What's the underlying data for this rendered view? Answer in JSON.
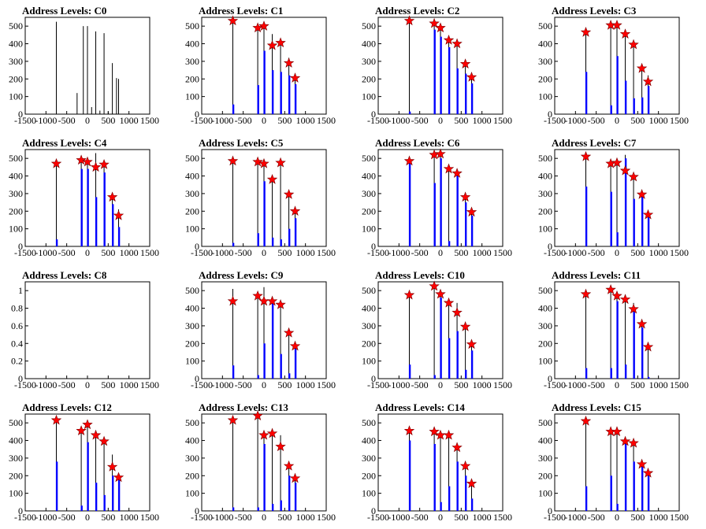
{
  "figure": {
    "colors": {
      "stem": "#000000",
      "bar": "#0000ff",
      "marker": "#ff0000",
      "marker_edge": "#7a0000",
      "axis": "#000000"
    }
  },
  "chart_data": [
    {
      "type": "bar",
      "title": "Address Levels: C0",
      "xlim": [
        -1500,
        1500
      ],
      "ylim": [
        0,
        550
      ],
      "xticks": [
        -1500,
        -1000,
        -500,
        0,
        500,
        1000,
        1500
      ],
      "yticks": [
        0,
        100,
        200,
        300,
        400,
        500
      ],
      "x": [
        -750,
        -250,
        -100,
        0,
        100,
        200,
        300,
        400,
        500,
        600,
        700,
        750
      ],
      "stems": [
        525,
        120,
        500,
        500,
        40,
        470,
        20,
        460,
        15,
        290,
        205,
        200
      ],
      "bars": [],
      "markers": []
    },
    {
      "type": "bar",
      "title": "Address Levels: C1",
      "xlim": [
        -1500,
        1500
      ],
      "ylim": [
        0,
        550
      ],
      "xticks": [
        -1500,
        -1000,
        -500,
        0,
        500,
        1000,
        1500
      ],
      "yticks": [
        0,
        100,
        200,
        300,
        400,
        500
      ],
      "x": [
        -750,
        -150,
        0,
        200,
        400,
        600,
        750
      ],
      "stems": [
        535,
        495,
        490,
        455,
        420,
        320,
        215
      ],
      "bars": [
        55,
        165,
        360,
        250,
        240,
        220,
        170
      ],
      "markers": [
        530,
        490,
        500,
        390,
        405,
        290,
        205
      ]
    },
    {
      "type": "bar",
      "title": "Address Levels: C2",
      "xlim": [
        -1500,
        1500
      ],
      "ylim": [
        0,
        550
      ],
      "xticks": [
        -1500,
        -1000,
        -500,
        0,
        500,
        1000,
        1500
      ],
      "yticks": [
        0,
        100,
        200,
        300,
        400,
        500
      ],
      "x": [
        -750,
        -150,
        0,
        200,
        400,
        600,
        750
      ],
      "stems": [
        540,
        510,
        480,
        420,
        390,
        285,
        210
      ],
      "bars": [
        15,
        480,
        440,
        380,
        260,
        230,
        175
      ],
      "markers": [
        530,
        515,
        490,
        420,
        400,
        285,
        210
      ]
    },
    {
      "type": "bar",
      "title": "Address Levels: C3",
      "xlim": [
        -1500,
        1500
      ],
      "ylim": [
        0,
        550
      ],
      "xticks": [
        -1500,
        -1000,
        -500,
        0,
        500,
        1000,
        1500
      ],
      "yticks": [
        0,
        100,
        200,
        300,
        400,
        500
      ],
      "x": [
        -750,
        -150,
        0,
        200,
        400,
        600,
        750
      ],
      "stems": [
        480,
        505,
        500,
        450,
        390,
        270,
        220
      ],
      "bars": [
        240,
        50,
        330,
        190,
        90,
        95,
        160
      ],
      "markers": [
        465,
        505,
        505,
        455,
        395,
        260,
        185
      ]
    },
    {
      "type": "bar",
      "title": "Address Levels: C4",
      "xlim": [
        -1500,
        1500
      ],
      "ylim": [
        0,
        550
      ],
      "xticks": [
        -1500,
        -1000,
        -500,
        0,
        500,
        1000,
        1500
      ],
      "yticks": [
        0,
        100,
        200,
        300,
        400,
        500
      ],
      "x": [
        -750,
        -150,
        0,
        200,
        400,
        600,
        750
      ],
      "stems": [
        480,
        500,
        490,
        530,
        470,
        290,
        210
      ],
      "bars": [
        40,
        440,
        440,
        280,
        420,
        240,
        110
      ],
      "markers": [
        470,
        490,
        480,
        450,
        465,
        280,
        175
      ]
    },
    {
      "type": "bar",
      "title": "Address Levels: C5",
      "xlim": [
        -1500,
        1500
      ],
      "ylim": [
        0,
        550
      ],
      "xticks": [
        -1500,
        -1000,
        -500,
        0,
        500,
        1000,
        1500
      ],
      "yticks": [
        0,
        100,
        200,
        300,
        400,
        500
      ],
      "x": [
        -750,
        -150,
        0,
        200,
        400,
        600,
        750
      ],
      "stems": [
        490,
        490,
        480,
        400,
        490,
        310,
        210
      ],
      "bars": [
        20,
        75,
        370,
        50,
        40,
        100,
        160
      ],
      "markers": [
        485,
        480,
        470,
        380,
        475,
        295,
        200
      ]
    },
    {
      "type": "bar",
      "title": "Address Levels: C6",
      "xlim": [
        -1500,
        1500
      ],
      "ylim": [
        0,
        550
      ],
      "xticks": [
        -1500,
        -1000,
        -500,
        0,
        500,
        1000,
        1500
      ],
      "yticks": [
        0,
        100,
        200,
        300,
        400,
        500
      ],
      "x": [
        -750,
        -150,
        0,
        200,
        400,
        600,
        750
      ],
      "stems": [
        490,
        525,
        530,
        450,
        420,
        290,
        205
      ],
      "bars": [
        480,
        360,
        500,
        30,
        400,
        250,
        175
      ],
      "markers": [
        485,
        520,
        525,
        440,
        415,
        280,
        195
      ]
    },
    {
      "type": "bar",
      "title": "Address Levels: C7",
      "xlim": [
        -1500,
        1500
      ],
      "ylim": [
        0,
        550
      ],
      "xticks": [
        -1500,
        -1000,
        -500,
        0,
        500,
        1000,
        1500
      ],
      "yticks": [
        0,
        100,
        200,
        300,
        400,
        500
      ],
      "x": [
        -750,
        -150,
        0,
        200,
        400,
        600,
        750
      ],
      "stems": [
        520,
        480,
        490,
        520,
        410,
        300,
        190
      ],
      "bars": [
        340,
        310,
        80,
        500,
        270,
        280,
        170
      ],
      "markers": [
        510,
        470,
        475,
        430,
        395,
        295,
        180
      ]
    },
    {
      "type": "bar",
      "title": "Address Levels: C8",
      "xlim": [
        -1500,
        1500
      ],
      "ylim": [
        0,
        1.1
      ],
      "xticks": [
        -1500,
        -1000,
        -500,
        0,
        500,
        1000,
        1500
      ],
      "yticks": [
        0,
        0.2,
        0.4,
        0.6,
        0.8,
        1
      ],
      "x": [],
      "stems": [],
      "bars": [],
      "markers": []
    },
    {
      "type": "bar",
      "title": "Address Levels: C9",
      "xlim": [
        -1500,
        1500
      ],
      "ylim": [
        0,
        550
      ],
      "xticks": [
        -1500,
        -1000,
        -500,
        0,
        500,
        1000,
        1500
      ],
      "yticks": [
        0,
        100,
        200,
        300,
        400,
        500
      ],
      "x": [
        -750,
        -150,
        0,
        200,
        400,
        600,
        750
      ],
      "stems": [
        510,
        480,
        520,
        450,
        430,
        275,
        200
      ],
      "bars": [
        75,
        20,
        200,
        440,
        140,
        30,
        170
      ],
      "markers": [
        440,
        470,
        440,
        440,
        420,
        260,
        185
      ]
    },
    {
      "type": "bar",
      "title": "Address Levels: C10",
      "xlim": [
        -1500,
        1500
      ],
      "ylim": [
        0,
        550
      ],
      "xticks": [
        -1500,
        -1000,
        -500,
        0,
        500,
        1000,
        1500
      ],
      "yticks": [
        0,
        100,
        200,
        300,
        400,
        500
      ],
      "x": [
        -750,
        -150,
        0,
        200,
        400,
        600,
        750
      ],
      "stems": [
        480,
        530,
        495,
        440,
        430,
        310,
        200
      ],
      "bars": [
        80,
        20,
        460,
        230,
        270,
        50,
        160
      ],
      "markers": [
        475,
        525,
        480,
        430,
        375,
        295,
        195
      ]
    },
    {
      "type": "bar",
      "title": "Address Levels: C11",
      "xlim": [
        -1500,
        1500
      ],
      "ylim": [
        0,
        550
      ],
      "xticks": [
        -1500,
        -1000,
        -500,
        0,
        500,
        1000,
        1500
      ],
      "yticks": [
        0,
        100,
        200,
        300,
        400,
        500
      ],
      "x": [
        -750,
        -150,
        0,
        200,
        400,
        600,
        750
      ],
      "stems": [
        480,
        510,
        480,
        460,
        430,
        320,
        180
      ],
      "bars": [
        60,
        60,
        440,
        80,
        380,
        290,
        10
      ],
      "markers": [
        480,
        505,
        470,
        450,
        395,
        310,
        180
      ]
    },
    {
      "type": "bar",
      "title": "Address Levels: C12",
      "xlim": [
        -1500,
        1500
      ],
      "ylim": [
        0,
        550
      ],
      "xticks": [
        -1500,
        -1000,
        -500,
        0,
        500,
        1000,
        1500
      ],
      "yticks": [
        0,
        100,
        200,
        300,
        400,
        500
      ],
      "x": [
        -750,
        -150,
        0,
        200,
        400,
        600,
        750
      ],
      "stems": [
        525,
        480,
        490,
        440,
        410,
        320,
        200
      ],
      "bars": [
        280,
        30,
        390,
        160,
        90,
        200,
        180
      ],
      "markers": [
        515,
        455,
        490,
        430,
        395,
        250,
        190
      ]
    },
    {
      "type": "bar",
      "title": "Address Levels: C13",
      "xlim": [
        -1500,
        1500
      ],
      "ylim": [
        0,
        550
      ],
      "xticks": [
        -1500,
        -1000,
        -500,
        0,
        500,
        1000,
        1500
      ],
      "yticks": [
        0,
        100,
        200,
        300,
        400,
        500
      ],
      "x": [
        -750,
        -150,
        0,
        200,
        400,
        600,
        750
      ],
      "stems": [
        520,
        545,
        440,
        460,
        430,
        270,
        200
      ],
      "bars": [
        20,
        20,
        380,
        40,
        60,
        200,
        160
      ],
      "markers": [
        515,
        540,
        430,
        440,
        365,
        255,
        185
      ]
    },
    {
      "type": "bar",
      "title": "Address Levels: C14",
      "xlim": [
        -1500,
        1500
      ],
      "ylim": [
        0,
        550
      ],
      "xticks": [
        -1500,
        -1000,
        -500,
        0,
        500,
        1000,
        1500
      ],
      "yticks": [
        0,
        100,
        200,
        300,
        400,
        500
      ],
      "x": [
        -750,
        -150,
        0,
        200,
        400,
        600,
        750
      ],
      "stems": [
        470,
        460,
        440,
        440,
        380,
        260,
        170
      ],
      "bars": [
        400,
        380,
        50,
        140,
        280,
        200,
        70
      ],
      "markers": [
        455,
        450,
        430,
        430,
        360,
        255,
        155
      ]
    },
    {
      "type": "bar",
      "title": "Address Levels: C15",
      "xlim": [
        -1500,
        1500
      ],
      "ylim": [
        0,
        550
      ],
      "xticks": [
        -1500,
        -1000,
        -500,
        0,
        500,
        1000,
        1500
      ],
      "yticks": [
        0,
        100,
        200,
        300,
        400,
        500
      ],
      "x": [
        -750,
        -150,
        0,
        200,
        400,
        600,
        750
      ],
      "stems": [
        520,
        460,
        460,
        420,
        400,
        290,
        215
      ],
      "bars": [
        140,
        200,
        40,
        390,
        280,
        250,
        200
      ],
      "markers": [
        510,
        450,
        450,
        395,
        385,
        265,
        215
      ]
    }
  ]
}
